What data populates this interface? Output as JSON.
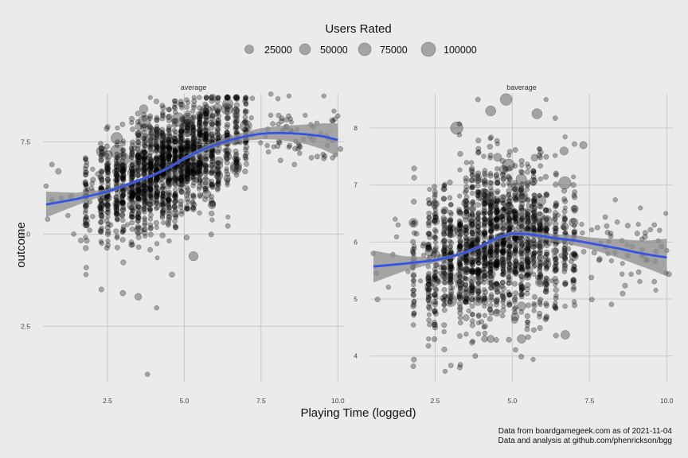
{
  "legend": {
    "title": "Users Rated",
    "items": [
      {
        "label": "25000",
        "value": 25000
      },
      {
        "label": "50000",
        "value": 50000
      },
      {
        "label": "75000",
        "value": 75000
      },
      {
        "label": "100000",
        "value": 100000
      }
    ]
  },
  "caption": {
    "line1": "Data from boardgamegeek.com as of 2021-11-04",
    "line2": "Data and analysis at github.com/phenrickson/bgg"
  },
  "colors": {
    "background": "#ebebeb",
    "grid": "#c8c8c8",
    "points": "#000000",
    "smooth_line": "#3354e6",
    "ribbon": "#8c8c8c"
  },
  "chart_data": {
    "type": "scatter",
    "xlabel": "Playing Time (logged)",
    "ylabel": "outcome",
    "facets": [
      {
        "name": "average",
        "xlim": [
          0.4,
          10.2
        ],
        "ylim": [
          1.0,
          8.8
        ],
        "x_ticks": [
          2.5,
          5.0,
          7.5,
          10.0
        ],
        "x_tick_labels": [
          "2.5",
          "5.0",
          "7.5",
          "10.0"
        ],
        "y_ticks": [
          2.5,
          5.0,
          7.5
        ],
        "y_tick_labels": [
          "2.5",
          "5.0",
          "7.5"
        ],
        "smooth": {
          "x": [
            0.5,
            1.5,
            2.5,
            3.0,
            3.5,
            4.0,
            4.5,
            5.0,
            5.5,
            6.0,
            6.5,
            7.0,
            7.5,
            8.0,
            8.5,
            9.0,
            9.5,
            10.0
          ],
          "y": [
            5.8,
            5.95,
            6.15,
            6.3,
            6.45,
            6.6,
            6.8,
            7.05,
            7.25,
            7.42,
            7.55,
            7.65,
            7.72,
            7.74,
            7.73,
            7.7,
            7.65,
            7.55
          ],
          "se": [
            0.35,
            0.17,
            0.07,
            0.05,
            0.04,
            0.04,
            0.04,
            0.05,
            0.06,
            0.08,
            0.1,
            0.12,
            0.15,
            0.18,
            0.22,
            0.27,
            0.35,
            0.45
          ]
        },
        "trend": {
          "x": [
            0.5,
            1.5,
            2.5,
            3.0,
            3.5,
            4.0,
            4.5,
            5.0,
            5.5,
            6.0,
            6.5,
            7.0,
            7.5,
            8.0,
            9.0,
            10.0
          ],
          "y": [
            5.8,
            5.95,
            6.15,
            6.3,
            6.45,
            6.6,
            6.8,
            7.05,
            7.25,
            7.42,
            7.55,
            7.65,
            7.72,
            7.74,
            7.7,
            7.55
          ]
        },
        "spread": 0.75,
        "outliers": [
          {
            "x": 2.3,
            "y": 3.5,
            "users": 3000
          },
          {
            "x": 3.0,
            "y": 3.4,
            "users": 5000
          },
          {
            "x": 3.5,
            "y": 3.3,
            "users": 12000
          },
          {
            "x": 4.1,
            "y": 3.0,
            "users": 2000
          },
          {
            "x": 3.8,
            "y": 1.2,
            "users": 2000
          },
          {
            "x": 5.3,
            "y": 4.4,
            "users": 30000
          },
          {
            "x": 4.6,
            "y": 3.9,
            "users": 4000
          },
          {
            "x": 1.8,
            "y": 3.9,
            "users": 2000
          },
          {
            "x": 0.9,
            "y": 6.7,
            "users": 6000
          },
          {
            "x": 0.55,
            "y": 5.4,
            "users": 2000
          },
          {
            "x": 0.5,
            "y": 6.3,
            "users": 2000
          },
          {
            "x": 1.4,
            "y": 5.0,
            "users": 2000
          },
          {
            "x": 4.8,
            "y": 8.1,
            "users": 90000
          },
          {
            "x": 3.7,
            "y": 8.05,
            "users": 70000
          },
          {
            "x": 2.8,
            "y": 7.6,
            "users": 55000
          },
          {
            "x": 10.0,
            "y": 8.2,
            "users": 2000
          },
          {
            "x": 8.4,
            "y": 8.2,
            "users": 2000
          },
          {
            "x": 9.2,
            "y": 7.9,
            "users": 2000
          },
          {
            "x": 7.7,
            "y": 7.4,
            "users": 2000
          },
          {
            "x": 7.2,
            "y": 7.7,
            "users": 2000
          }
        ]
      },
      {
        "name": "baverage",
        "xlim": [
          0.4,
          10.2
        ],
        "ylim": [
          3.55,
          8.6
        ],
        "x_ticks": [
          2.5,
          5.0,
          7.5,
          10.0
        ],
        "x_tick_labels": [
          "2.5",
          "5.0",
          "7.5",
          "10.0"
        ],
        "y_ticks": [
          4,
          5,
          6,
          7,
          8
        ],
        "y_tick_labels": [
          "4",
          "5",
          "6",
          "7",
          "8"
        ],
        "smooth": {
          "x": [
            0.5,
            1.5,
            2.5,
            3.0,
            3.5,
            4.0,
            4.5,
            5.0,
            5.5,
            6.0,
            6.5,
            7.0,
            7.5,
            8.0,
            8.5,
            9.0,
            9.5,
            10.0
          ],
          "y": [
            5.57,
            5.62,
            5.68,
            5.74,
            5.82,
            5.93,
            6.07,
            6.15,
            6.14,
            6.1,
            6.06,
            6.03,
            5.98,
            5.93,
            5.88,
            5.82,
            5.77,
            5.73
          ],
          "se": [
            0.28,
            0.13,
            0.05,
            0.03,
            0.03,
            0.03,
            0.03,
            0.04,
            0.05,
            0.06,
            0.07,
            0.09,
            0.1,
            0.13,
            0.17,
            0.21,
            0.26,
            0.33
          ]
        },
        "trend": {
          "x": [
            0.5,
            2.5,
            3.0,
            3.5,
            4.0,
            4.5,
            5.0,
            6.0,
            7.0,
            8.0,
            9.0,
            10.0
          ],
          "y": [
            5.5,
            5.65,
            5.75,
            5.85,
            5.95,
            6.05,
            6.1,
            6.05,
            6.0,
            5.93,
            5.85,
            5.8
          ]
        },
        "spread": 0.7,
        "outliers": [
          {
            "x": 3.8,
            "y": 4.0,
            "users": 3000
          },
          {
            "x": 4.1,
            "y": 4.3,
            "users": 8000
          },
          {
            "x": 4.3,
            "y": 4.3,
            "users": 14000
          },
          {
            "x": 5.3,
            "y": 4.3,
            "users": 25000
          },
          {
            "x": 3.3,
            "y": 3.8,
            "users": 3000
          },
          {
            "x": 2.5,
            "y": 4.5,
            "users": 3000
          },
          {
            "x": 4.0,
            "y": 4.6,
            "users": 3000
          },
          {
            "x": 1.3,
            "y": 6.3,
            "users": 2000
          },
          {
            "x": 0.6,
            "y": 5.45,
            "users": 2000
          },
          {
            "x": 0.5,
            "y": 5.8,
            "users": 2000
          },
          {
            "x": 4.8,
            "y": 8.5,
            "users": 60000
          },
          {
            "x": 4.3,
            "y": 8.3,
            "users": 40000
          },
          {
            "x": 3.2,
            "y": 8.0,
            "users": 70000
          },
          {
            "x": 5.8,
            "y": 8.25,
            "users": 40000
          },
          {
            "x": 7.3,
            "y": 7.7,
            "users": 15000
          },
          {
            "x": 9.6,
            "y": 6.3,
            "users": 2000
          },
          {
            "x": 10.0,
            "y": 5.85,
            "users": 2000
          },
          {
            "x": 9.2,
            "y": 6.05,
            "users": 2000
          },
          {
            "x": 8.4,
            "y": 6.35,
            "users": 2000
          },
          {
            "x": 8.1,
            "y": 5.8,
            "users": 2000
          }
        ]
      }
    ]
  }
}
